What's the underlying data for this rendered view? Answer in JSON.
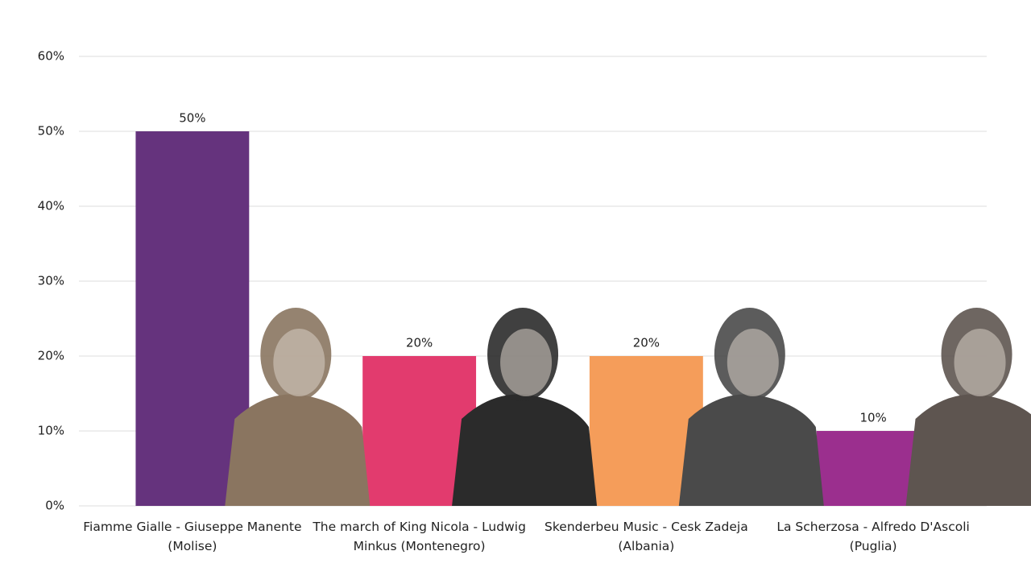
{
  "chart_data": {
    "type": "bar",
    "categories": [
      "Fiamme Gialle - Giuseppe Manente (Molise)",
      "The march of King Nicola - Ludwig Minkus (Montenegro)",
      "Skenderbeu Music - Cesk Zadeja (Albania)",
      "La Scherzosa - Alfredo D'Ascoli (Puglia)"
    ],
    "values": [
      50,
      20,
      20,
      10
    ],
    "value_labels": [
      "50%",
      "20%",
      "20%",
      "10%"
    ],
    "colors": [
      "#65337d",
      "#e23b6e",
      "#f59d5a",
      "#9b2f8e"
    ],
    "ylim": [
      0,
      60
    ],
    "yticks": [
      {
        "value": 0,
        "label": "0%"
      },
      {
        "value": 10,
        "label": "10%"
      },
      {
        "value": 20,
        "label": "20%"
      },
      {
        "value": 30,
        "label": "30%"
      },
      {
        "value": 40,
        "label": "40%"
      },
      {
        "value": 50,
        "label": "50%"
      },
      {
        "value": 60,
        "label": "60%"
      }
    ],
    "grid": true
  }
}
